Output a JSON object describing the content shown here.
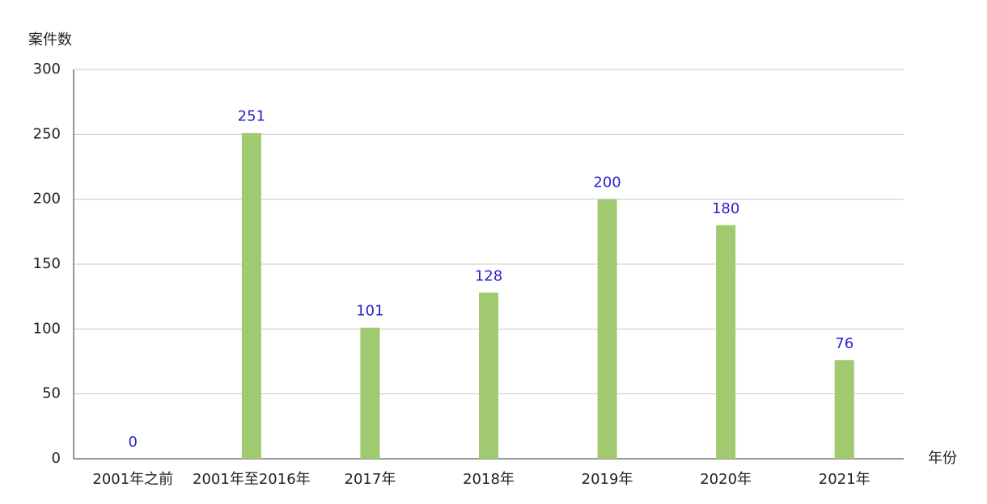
{
  "chart_data": {
    "type": "bar",
    "y_label": "案件数",
    "x_label": "年份",
    "categories": [
      "2001年之前",
      "2001年至2016年",
      "2017年",
      "2018年",
      "2019年",
      "2020年",
      "2021年"
    ],
    "values": [
      0,
      251,
      101,
      128,
      200,
      180,
      76
    ],
    "color": "#a0c970",
    "label_color": "#2a22c8",
    "ylim": [
      0,
      300
    ],
    "yticks": [
      0,
      50,
      100,
      150,
      200,
      250,
      300
    ],
    "grid": true
  }
}
